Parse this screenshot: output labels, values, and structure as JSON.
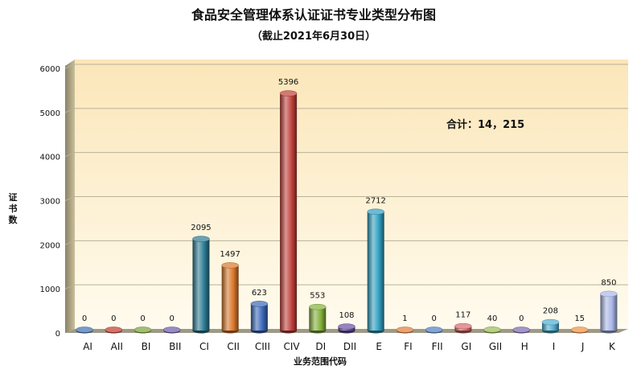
{
  "chart_data": {
    "type": "bar",
    "title": "食品安全管理体系认证证书专业类型分布图",
    "subtitle": "（截止2021年6月30日）",
    "xlabel": "业务范围代码",
    "ylabel": "证书数",
    "ylim": [
      0,
      6000
    ],
    "yticks": [
      0,
      1000,
      2000,
      3000,
      4000,
      5000,
      6000
    ],
    "grid": true,
    "annotation": "合计：14，215",
    "categories": [
      "AI",
      "AII",
      "BI",
      "BII",
      "CI",
      "CII",
      "CIII",
      "CIV",
      "DI",
      "DII",
      "E",
      "FI",
      "FII",
      "GI",
      "GII",
      "H",
      "I",
      "J",
      "K"
    ],
    "values": [
      0,
      0,
      0,
      0,
      2095,
      1497,
      623,
      5396,
      553,
      108,
      2712,
      1,
      0,
      117,
      40,
      0,
      208,
      15,
      850
    ],
    "colors": [
      "#3f6fb0",
      "#c0392b",
      "#7ba03a",
      "#6a5aa8",
      "#2b7a92",
      "#d9772a",
      "#3a68b8",
      "#c0403a",
      "#84b03a",
      "#6a4fa3",
      "#2f9ec0",
      "#e07b36",
      "#4f7fc0",
      "#d86a6a",
      "#99bb55",
      "#7a68b0",
      "#4faed0",
      "#f09040",
      "#a9b7e6"
    ]
  }
}
